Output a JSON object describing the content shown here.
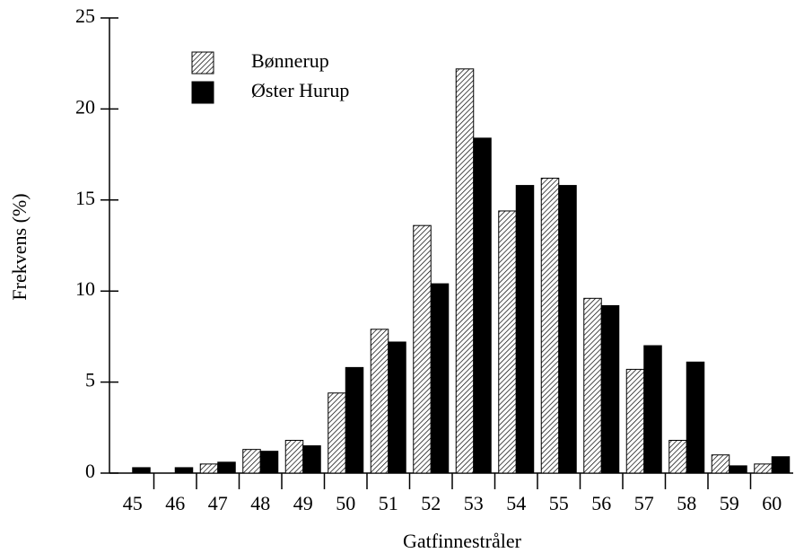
{
  "chart_data": {
    "type": "bar",
    "x_label": "Gatfinnestråler",
    "y_label": "Frekvens (%)",
    "categories": [
      "45",
      "46",
      "47",
      "48",
      "49",
      "50",
      "51",
      "52",
      "53",
      "54",
      "55",
      "56",
      "57",
      "58",
      "59",
      "60"
    ],
    "series": [
      {
        "name": "Bønnerup",
        "color": "#000000",
        "hatch": true,
        "values": [
          0,
          0,
          0.5,
          1.3,
          1.8,
          4.4,
          7.9,
          13.6,
          22.2,
          14.4,
          16.2,
          9.6,
          5.7,
          1.8,
          1.0,
          0.5
        ]
      },
      {
        "name": "Øster Hurup",
        "color": "#000000",
        "hatch": false,
        "values": [
          0.3,
          0.3,
          0.6,
          1.2,
          1.5,
          5.8,
          7.2,
          10.4,
          18.4,
          15.8,
          15.8,
          9.2,
          7.0,
          6.1,
          0.4,
          0.9
        ]
      }
    ],
    "ylim": [
      0,
      25
    ],
    "yticks": [
      0,
      5,
      10,
      15,
      20,
      25
    ],
    "legend": "upper left"
  }
}
